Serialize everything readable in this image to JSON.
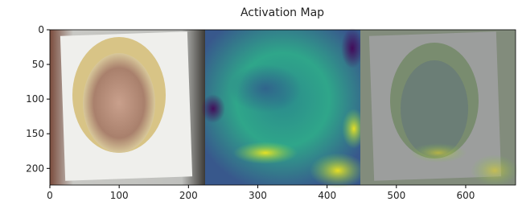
{
  "chart_data": {
    "type": "image",
    "title": "Activation Map",
    "xlim": [
      0,
      672
    ],
    "ylim": [
      224,
      0
    ],
    "xticks": [
      0,
      100,
      200,
      300,
      400,
      500,
      600
    ],
    "yticks": [
      0,
      50,
      100,
      150,
      200
    ]
  }
}
